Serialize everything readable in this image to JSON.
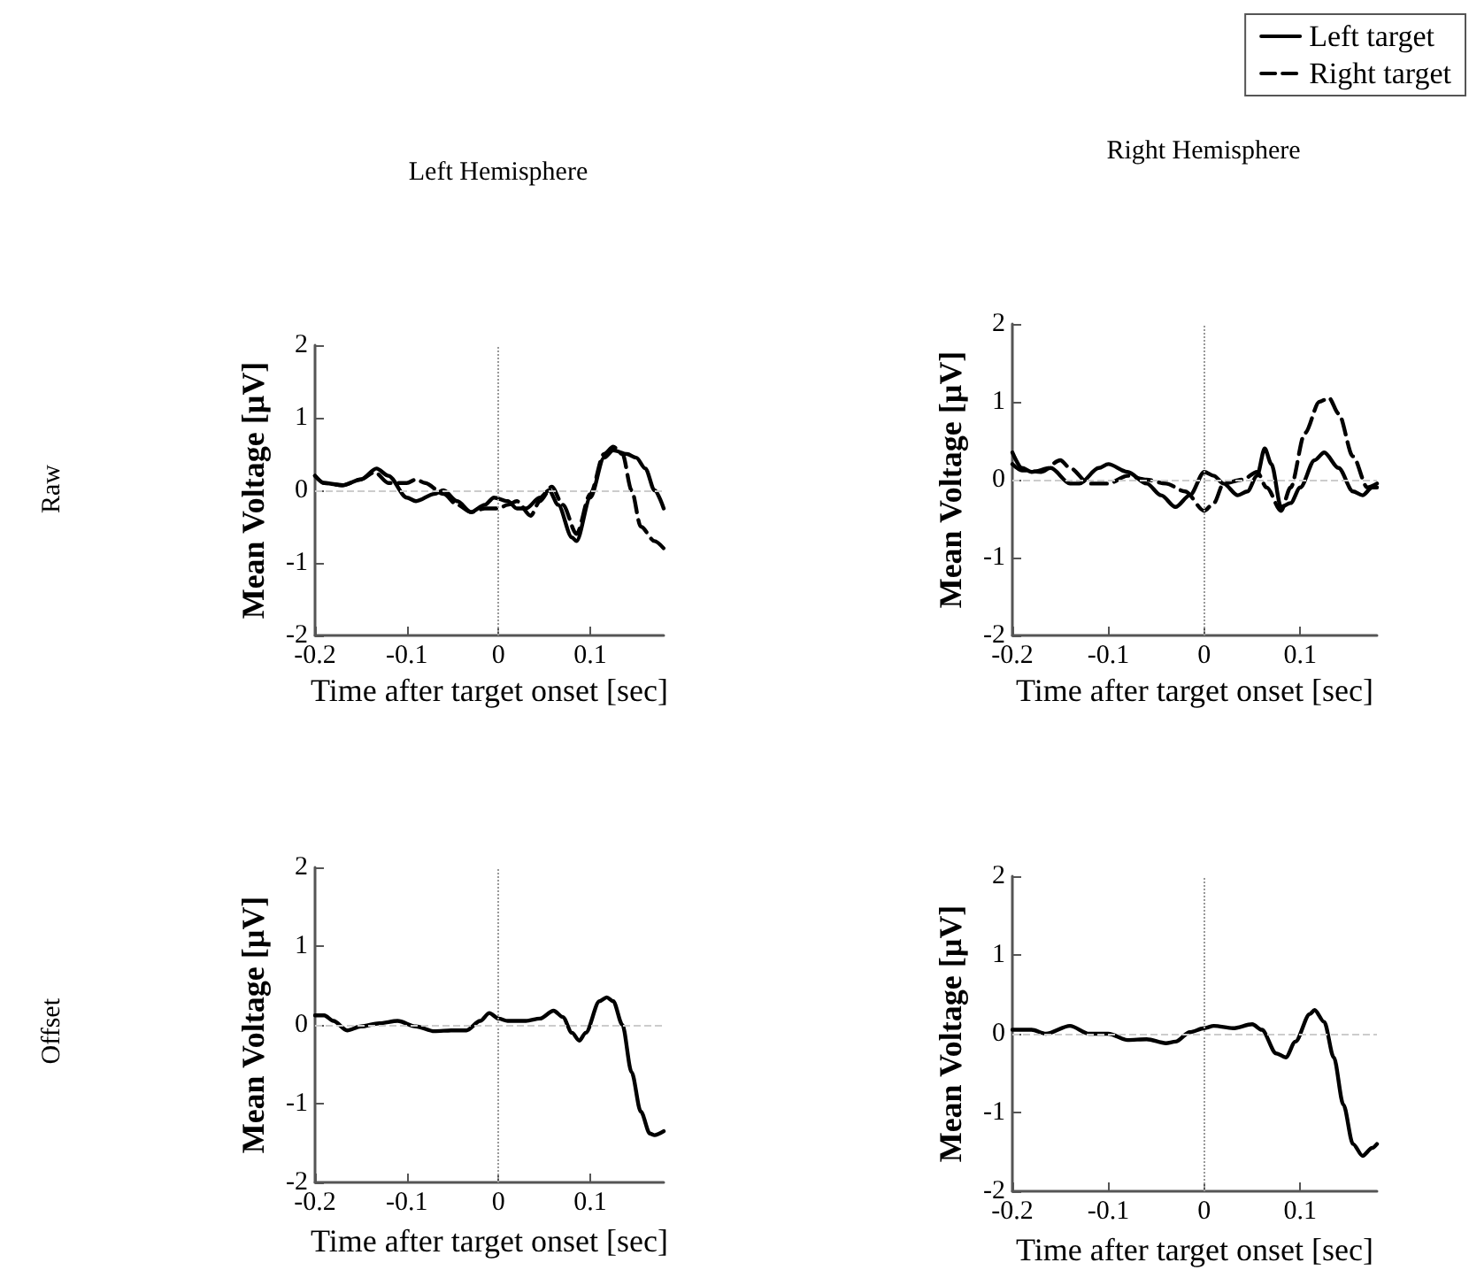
{
  "chart_data": [
    {
      "type": "line",
      "title": "Left Hemisphere",
      "xlabel": "Time after target onset [sec]",
      "ylabel": "Mean Voltage [µV]",
      "annotations": [
        "Raw"
      ],
      "xlim": [
        -0.2,
        0.18
      ],
      "ylim": [
        -2,
        2
      ],
      "xticks": [
        -0.2,
        -0.1,
        0,
        0.1
      ],
      "yticks": [
        -2,
        -1,
        0,
        1,
        2
      ],
      "marker": "none",
      "ref_lines": [
        {
          "axis": "x",
          "value": 0,
          "color": "#999999",
          "line_style": "dotted"
        },
        {
          "axis": "y",
          "value": 0,
          "color": "#cccccc",
          "line_style": "dashed"
        }
      ],
      "series": [
        {
          "color": "#000000",
          "line_style": "solid",
          "x": [
            -0.2,
            -0.19,
            -0.17,
            -0.15,
            -0.133,
            -0.12,
            -0.1,
            -0.09,
            -0.07,
            -0.06,
            -0.045,
            -0.03,
            -0.015,
            -0.005,
            0.01,
            0.02,
            0.03,
            0.045,
            0.055,
            0.065,
            0.08,
            0.085,
            0.1,
            0.115,
            0.125,
            0.14,
            0.15,
            0.16,
            0.17,
            0.18
          ],
          "values": [
            0.2,
            0.1,
            0.07,
            0.15,
            0.3,
            0.2,
            -0.1,
            -0.15,
            -0.05,
            0,
            -0.15,
            -0.3,
            -0.2,
            -0.1,
            -0.15,
            -0.25,
            -0.25,
            -0.1,
            0,
            -0.2,
            -0.65,
            -0.7,
            -0.1,
            0.45,
            0.55,
            0.5,
            0.45,
            0.3,
            0,
            -0.25
          ]
        },
        {
          "color": "#000000",
          "line_style": "dashed",
          "x": [
            -0.2,
            -0.19,
            -0.17,
            -0.15,
            -0.135,
            -0.12,
            -0.1,
            -0.09,
            -0.08,
            -0.06,
            -0.045,
            -0.03,
            -0.015,
            0,
            0.01,
            0.02,
            0.035,
            0.045,
            0.058,
            0.07,
            0.085,
            0.1,
            0.115,
            0.125,
            0.135,
            0.145,
            0.155,
            0.17,
            0.18
          ],
          "values": [
            0.2,
            0.1,
            0.07,
            0.15,
            0.25,
            0.1,
            0.1,
            0.15,
            0.1,
            -0.05,
            -0.2,
            -0.3,
            -0.25,
            -0.25,
            -0.2,
            -0.15,
            -0.35,
            -0.15,
            0.05,
            -0.2,
            -0.6,
            -0.05,
            0.5,
            0.6,
            0.5,
            0,
            -0.5,
            -0.7,
            -0.8
          ]
        }
      ]
    },
    {
      "type": "line",
      "title": "Right Hemisphere",
      "xlabel": "Time after target onset [sec]",
      "ylabel": "Mean Voltage [µV]",
      "legend": "top right",
      "xlim": [
        -0.2,
        0.18
      ],
      "ylim": [
        -2,
        2
      ],
      "xticks": [
        -0.2,
        -0.1,
        0,
        0.1
      ],
      "yticks": [
        -2,
        -1,
        0,
        1,
        2
      ],
      "marker": "none",
      "ref_lines": [
        {
          "axis": "x",
          "value": 0,
          "color": "#999999",
          "line_style": "dotted"
        },
        {
          "axis": "y",
          "value": 0,
          "color": "#cccccc",
          "line_style": "dashed"
        }
      ],
      "series": [
        {
          "name": "Left target",
          "color": "#000000",
          "line_style": "solid",
          "x": [
            -0.2,
            -0.19,
            -0.18,
            -0.16,
            -0.14,
            -0.13,
            -0.11,
            -0.1,
            -0.08,
            -0.06,
            -0.045,
            -0.03,
            -0.015,
            0,
            0.01,
            0.02,
            0.035,
            0.045,
            0.055,
            0.063,
            0.07,
            0.08,
            0.09,
            0.1,
            0.115,
            0.125,
            0.14,
            0.155,
            0.165,
            0.175,
            0.18
          ],
          "values": [
            0.35,
            0.15,
            0.1,
            0.15,
            -0.05,
            -0.05,
            0.15,
            0.2,
            0.1,
            -0.05,
            -0.2,
            -0.35,
            -0.2,
            0.1,
            0.05,
            -0.05,
            -0.2,
            -0.15,
            0.05,
            0.4,
            0.2,
            -0.35,
            -0.3,
            -0.1,
            0.25,
            0.35,
            0.15,
            -0.15,
            -0.2,
            -0.1,
            -0.1
          ]
        },
        {
          "name": "Right target",
          "color": "#000000",
          "line_style": "dashed",
          "x": [
            -0.2,
            -0.19,
            -0.17,
            -0.15,
            -0.14,
            -0.12,
            -0.1,
            -0.08,
            -0.06,
            -0.04,
            -0.02,
            0,
            0.01,
            0.02,
            0.04,
            0.055,
            0.065,
            0.08,
            0.09,
            0.105,
            0.12,
            0.13,
            0.14,
            0.155,
            0.17,
            0.18
          ],
          "values": [
            0.2,
            0.12,
            0.1,
            0.25,
            0.15,
            -0.05,
            -0.05,
            0.05,
            0,
            -0.05,
            -0.15,
            -0.4,
            -0.3,
            -0.05,
            0,
            0.1,
            -0.1,
            -0.4,
            -0.1,
            0.6,
            1,
            1.05,
            0.85,
            0.3,
            -0.1,
            -0.05
          ]
        }
      ]
    },
    {
      "type": "line",
      "xlabel": "Time after target onset [sec]",
      "ylabel": "Mean Voltage [µV]",
      "annotations": [
        "Offset"
      ],
      "xlim": [
        -0.2,
        0.18
      ],
      "ylim": [
        -2,
        2
      ],
      "xticks": [
        -0.2,
        -0.1,
        0,
        0.1
      ],
      "yticks": [
        -2,
        -1,
        0,
        1,
        2
      ],
      "marker": "none",
      "ref_lines": [
        {
          "axis": "x",
          "value": 0,
          "color": "#999999",
          "line_style": "dotted"
        },
        {
          "axis": "y",
          "value": 0,
          "color": "#cccccc",
          "line_style": "dashed"
        }
      ],
      "series": [
        {
          "color": "#000000",
          "line_style": "solid",
          "x": [
            -0.2,
            -0.19,
            -0.18,
            -0.165,
            -0.15,
            -0.13,
            -0.11,
            -0.09,
            -0.07,
            -0.05,
            -0.035,
            -0.02,
            -0.01,
            0,
            0.01,
            0.03,
            0.045,
            0.06,
            0.07,
            0.08,
            0.088,
            0.095,
            0.11,
            0.118,
            0.125,
            0.135,
            0.145,
            0.155,
            0.165,
            0.17,
            0.18
          ],
          "values": [
            0.12,
            0.12,
            0.05,
            -0.07,
            -0.02,
            0.02,
            0.05,
            -0.02,
            -0.08,
            -0.07,
            -0.07,
            0.05,
            0.15,
            0.08,
            0.05,
            0.05,
            0.08,
            0.18,
            0.1,
            -0.1,
            -0.2,
            -0.1,
            0.3,
            0.35,
            0.3,
            0,
            -0.6,
            -1.1,
            -1.38,
            -1.4,
            -1.35
          ]
        }
      ]
    },
    {
      "type": "line",
      "xlabel": "Time after target onset [sec]",
      "ylabel": "Mean Voltage [µV]",
      "xlim": [
        -0.2,
        0.18
      ],
      "ylim": [
        -2,
        2
      ],
      "xticks": [
        -0.2,
        -0.1,
        0,
        0.1
      ],
      "yticks": [
        -2,
        -1,
        0,
        1,
        2
      ],
      "marker": "none",
      "ref_lines": [
        {
          "axis": "x",
          "value": 0,
          "color": "#999999",
          "line_style": "dotted"
        },
        {
          "axis": "y",
          "value": 0,
          "color": "#cccccc",
          "line_style": "dashed"
        }
      ],
      "series": [
        {
          "color": "#000000",
          "line_style": "solid",
          "x": [
            -0.2,
            -0.18,
            -0.165,
            -0.14,
            -0.12,
            -0.1,
            -0.08,
            -0.06,
            -0.04,
            -0.03,
            -0.015,
            0,
            0.01,
            0.03,
            0.05,
            0.06,
            0.075,
            0.085,
            0.095,
            0.11,
            0.115,
            0.125,
            0.135,
            0.145,
            0.155,
            0.165,
            0.175,
            0.18
          ],
          "values": [
            0.05,
            0.05,
            0,
            0.1,
            0,
            0,
            -0.08,
            -0.07,
            -0.12,
            -0.1,
            0.02,
            0.07,
            0.1,
            0.07,
            0.12,
            0.05,
            -0.25,
            -0.3,
            -0.1,
            0.25,
            0.3,
            0.15,
            -0.3,
            -0.9,
            -1.4,
            -1.55,
            -1.45,
            -1.4
          ]
        }
      ]
    }
  ]
}
